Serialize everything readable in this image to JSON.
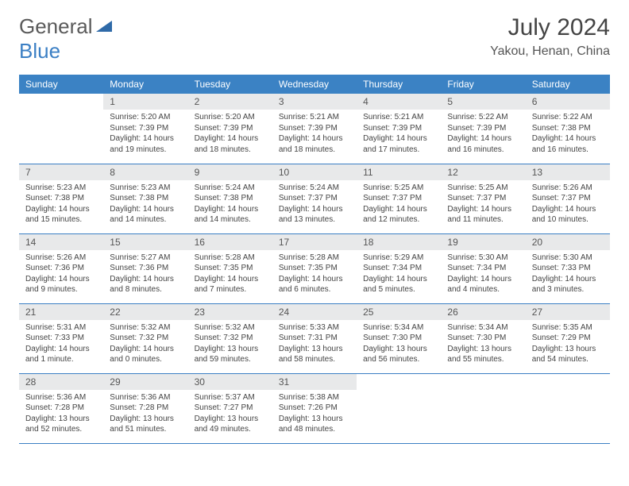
{
  "logo": {
    "text_gray": "General",
    "text_blue": "Blue"
  },
  "title": "July 2024",
  "location": "Yakou, Henan, China",
  "colors": {
    "header_bg": "#3b82c4",
    "header_text": "#ffffff",
    "daynum_bg": "#e8e9ea",
    "border": "#3b7fc4",
    "text": "#444444"
  },
  "dayNames": [
    "Sunday",
    "Monday",
    "Tuesday",
    "Wednesday",
    "Thursday",
    "Friday",
    "Saturday"
  ],
  "firstWeekday": 1,
  "daysInMonth": 31,
  "days": {
    "1": {
      "sunrise": "5:20 AM",
      "sunset": "7:39 PM",
      "daylight": "14 hours and 19 minutes."
    },
    "2": {
      "sunrise": "5:20 AM",
      "sunset": "7:39 PM",
      "daylight": "14 hours and 18 minutes."
    },
    "3": {
      "sunrise": "5:21 AM",
      "sunset": "7:39 PM",
      "daylight": "14 hours and 18 minutes."
    },
    "4": {
      "sunrise": "5:21 AM",
      "sunset": "7:39 PM",
      "daylight": "14 hours and 17 minutes."
    },
    "5": {
      "sunrise": "5:22 AM",
      "sunset": "7:39 PM",
      "daylight": "14 hours and 16 minutes."
    },
    "6": {
      "sunrise": "5:22 AM",
      "sunset": "7:38 PM",
      "daylight": "14 hours and 16 minutes."
    },
    "7": {
      "sunrise": "5:23 AM",
      "sunset": "7:38 PM",
      "daylight": "14 hours and 15 minutes."
    },
    "8": {
      "sunrise": "5:23 AM",
      "sunset": "7:38 PM",
      "daylight": "14 hours and 14 minutes."
    },
    "9": {
      "sunrise": "5:24 AM",
      "sunset": "7:38 PM",
      "daylight": "14 hours and 14 minutes."
    },
    "10": {
      "sunrise": "5:24 AM",
      "sunset": "7:37 PM",
      "daylight": "14 hours and 13 minutes."
    },
    "11": {
      "sunrise": "5:25 AM",
      "sunset": "7:37 PM",
      "daylight": "14 hours and 12 minutes."
    },
    "12": {
      "sunrise": "5:25 AM",
      "sunset": "7:37 PM",
      "daylight": "14 hours and 11 minutes."
    },
    "13": {
      "sunrise": "5:26 AM",
      "sunset": "7:37 PM",
      "daylight": "14 hours and 10 minutes."
    },
    "14": {
      "sunrise": "5:26 AM",
      "sunset": "7:36 PM",
      "daylight": "14 hours and 9 minutes."
    },
    "15": {
      "sunrise": "5:27 AM",
      "sunset": "7:36 PM",
      "daylight": "14 hours and 8 minutes."
    },
    "16": {
      "sunrise": "5:28 AM",
      "sunset": "7:35 PM",
      "daylight": "14 hours and 7 minutes."
    },
    "17": {
      "sunrise": "5:28 AM",
      "sunset": "7:35 PM",
      "daylight": "14 hours and 6 minutes."
    },
    "18": {
      "sunrise": "5:29 AM",
      "sunset": "7:34 PM",
      "daylight": "14 hours and 5 minutes."
    },
    "19": {
      "sunrise": "5:30 AM",
      "sunset": "7:34 PM",
      "daylight": "14 hours and 4 minutes."
    },
    "20": {
      "sunrise": "5:30 AM",
      "sunset": "7:33 PM",
      "daylight": "14 hours and 3 minutes."
    },
    "21": {
      "sunrise": "5:31 AM",
      "sunset": "7:33 PM",
      "daylight": "14 hours and 1 minute."
    },
    "22": {
      "sunrise": "5:32 AM",
      "sunset": "7:32 PM",
      "daylight": "14 hours and 0 minutes."
    },
    "23": {
      "sunrise": "5:32 AM",
      "sunset": "7:32 PM",
      "daylight": "13 hours and 59 minutes."
    },
    "24": {
      "sunrise": "5:33 AM",
      "sunset": "7:31 PM",
      "daylight": "13 hours and 58 minutes."
    },
    "25": {
      "sunrise": "5:34 AM",
      "sunset": "7:30 PM",
      "daylight": "13 hours and 56 minutes."
    },
    "26": {
      "sunrise": "5:34 AM",
      "sunset": "7:30 PM",
      "daylight": "13 hours and 55 minutes."
    },
    "27": {
      "sunrise": "5:35 AM",
      "sunset": "7:29 PM",
      "daylight": "13 hours and 54 minutes."
    },
    "28": {
      "sunrise": "5:36 AM",
      "sunset": "7:28 PM",
      "daylight": "13 hours and 52 minutes."
    },
    "29": {
      "sunrise": "5:36 AM",
      "sunset": "7:28 PM",
      "daylight": "13 hours and 51 minutes."
    },
    "30": {
      "sunrise": "5:37 AM",
      "sunset": "7:27 PM",
      "daylight": "13 hours and 49 minutes."
    },
    "31": {
      "sunrise": "5:38 AM",
      "sunset": "7:26 PM",
      "daylight": "13 hours and 48 minutes."
    }
  },
  "labels": {
    "sunrise": "Sunrise:",
    "sunset": "Sunset:",
    "daylight": "Daylight:"
  }
}
